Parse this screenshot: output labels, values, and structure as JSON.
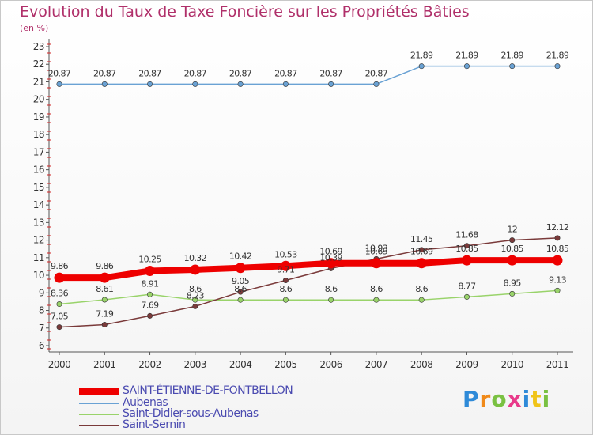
{
  "title": "Evolution du Taux de Taxe Foncière sur les Propriétés Bâties",
  "subtitle": "(en %)",
  "logo": "Proxiti",
  "chart_data": {
    "type": "line",
    "x": [
      "2000",
      "2001",
      "2002",
      "2003",
      "2004",
      "2005",
      "2006",
      "2007",
      "2008",
      "2009",
      "2010",
      "2011"
    ],
    "yticks": [
      6,
      7,
      8,
      9,
      10,
      11,
      12,
      13,
      14,
      15,
      16,
      17,
      18,
      19,
      20,
      21,
      22,
      23
    ],
    "ylim": [
      6,
      23
    ],
    "grid": false,
    "legend_position": "bottom",
    "series": [
      {
        "name": "SAINT-ÉTIENNE-DE-FONTBELLON",
        "color": "#ee0000",
        "values": [
          9.86,
          9.86,
          10.25,
          10.32,
          10.42,
          10.53,
          10.69,
          10.69,
          10.69,
          10.85,
          10.85,
          10.85
        ],
        "labels": [
          "9.86",
          "9.86",
          "10.25",
          "10.32",
          "10.42",
          "10.53",
          "10.69",
          "10.69",
          "10.69",
          "10.85",
          "10.85",
          "10.85"
        ]
      },
      {
        "name": "Aubenas",
        "color": "#6aa2d4",
        "values": [
          20.87,
          20.87,
          20.87,
          20.87,
          20.87,
          20.87,
          20.87,
          20.87,
          21.89,
          21.89,
          21.89,
          21.89
        ],
        "labels": [
          "20.87",
          "20.87",
          "20.87",
          "20.87",
          "20.87",
          "20.87",
          "20.87",
          "20.87",
          "21.89",
          "21.89",
          "21.89",
          "21.89"
        ]
      },
      {
        "name": "Saint-Didier-sous-Aubenas",
        "color": "#99d36a",
        "values": [
          8.36,
          8.61,
          8.91,
          8.6,
          8.6,
          8.6,
          8.6,
          8.6,
          8.6,
          8.77,
          8.95,
          9.13
        ],
        "labels": [
          "8.36",
          "8.61",
          "8.91",
          "8.6",
          "8.6",
          "8.6",
          "8.6",
          "8.6",
          "8.6",
          "8.77",
          "8.95",
          "9.13"
        ]
      },
      {
        "name": "Saint-Sernin",
        "color": "#7a3a3a",
        "values": [
          7.05,
          7.19,
          7.69,
          8.23,
          9.05,
          9.71,
          10.39,
          10.93,
          11.45,
          11.68,
          12,
          12.12
        ],
        "labels": [
          "7.05",
          "7.19",
          "7.69",
          "8.23",
          "9.05",
          "9.71",
          "10.39",
          "10.93",
          "11.45",
          "11.68",
          "12",
          "12.12"
        ]
      }
    ]
  }
}
